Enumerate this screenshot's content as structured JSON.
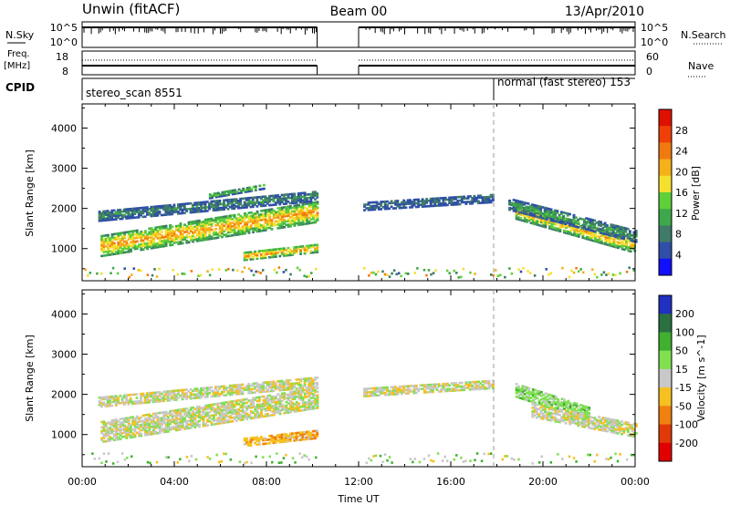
{
  "header": {
    "title": "Unwin (fitACF)",
    "beam": "Beam 00",
    "date": "13/Apr/2010"
  },
  "strips": {
    "nsky_label": "N.Sky",
    "nsky_ticks": [
      "10^5",
      "10^0"
    ],
    "nsearch_label": "N.Search",
    "nsearch_ticks": [
      "10^5",
      "10^0"
    ],
    "freq_label_line1": "Freq.",
    "freq_label_line2": "[MHz]",
    "freq_ticks": [
      "18",
      "8"
    ],
    "nave_label": "Nave",
    "nave_ticks": [
      "60",
      "0"
    ],
    "cpid_label": "CPID",
    "cpid_left": "stereo_scan 8551",
    "cpid_right": "normal (fast stereo) 153"
  },
  "chart_data": [
    {
      "type": "heatmap",
      "name_shown": "Power [dB]",
      "ylabel": "Slant Range [km]",
      "yticks": [
        1000,
        2000,
        3000,
        4000
      ],
      "ylim": [
        200,
        4600
      ],
      "xlim": [
        0,
        24
      ],
      "colorbar_ticks": [
        4,
        8,
        12,
        16,
        20,
        24,
        28
      ],
      "colorbar_colors": [
        "#1010ff",
        "#2f4fa8",
        "#3f7a6a",
        "#3fa84a",
        "#5fd03a",
        "#f5e030",
        "#f5b01a",
        "#f07a10",
        "#f04008",
        "#e01000"
      ],
      "echo_bands": [
        {
          "t0": 0.8,
          "t1": 10.2,
          "r0_start": 1050,
          "r0_end": 1900,
          "width": 500,
          "level": 22
        },
        {
          "t0": 0.7,
          "t1": 10.2,
          "r0_start": 1800,
          "r0_end": 2300,
          "width": 250,
          "level": 8
        },
        {
          "t0": 5.5,
          "t1": 8.0,
          "r0_start": 2300,
          "r0_end": 2550,
          "width": 120,
          "level": 14
        },
        {
          "t0": 7.0,
          "t1": 10.2,
          "r0_start": 800,
          "r0_end": 1000,
          "width": 200,
          "level": 22
        },
        {
          "t0": 12.2,
          "t1": 17.8,
          "r0_start": 2050,
          "r0_end": 2250,
          "width": 220,
          "level": 6
        },
        {
          "t0": 18.8,
          "t1": 24.0,
          "r0_start": 1900,
          "r0_end": 1050,
          "width": 350,
          "level": 20
        },
        {
          "t0": 18.5,
          "t1": 24.0,
          "r0_start": 2100,
          "r0_end": 1300,
          "width": 300,
          "level": 10
        }
      ]
    },
    {
      "type": "heatmap",
      "name_shown": "Velocity [m s^-1]",
      "ylabel": "Slant Range [km]",
      "yticks": [
        1000,
        2000,
        3000,
        4000
      ],
      "ylim": [
        200,
        4600
      ],
      "xlim": [
        0,
        24
      ],
      "colorbar_ticks": [
        200,
        100,
        50,
        15,
        -15,
        -50,
        -100,
        -200
      ],
      "colorbar_colors": [
        "#2030c0",
        "#2a7040",
        "#3fb030",
        "#7fe050",
        "#c8c8c8",
        "#f5c020",
        "#f08010",
        "#e03a08",
        "#e00000"
      ],
      "echo_bands": [
        {
          "t0": 0.8,
          "t1": 10.2,
          "r0_start": 1050,
          "r0_end": 1900,
          "width": 500,
          "vel": 0
        },
        {
          "t0": 0.7,
          "t1": 10.2,
          "r0_start": 1800,
          "r0_end": 2300,
          "width": 250,
          "vel": 0
        },
        {
          "t0": 7.0,
          "t1": 10.2,
          "r0_start": 800,
          "r0_end": 1000,
          "width": 200,
          "vel": -40
        },
        {
          "t0": 12.2,
          "t1": 17.8,
          "r0_start": 2050,
          "r0_end": 2250,
          "width": 220,
          "vel": 0
        },
        {
          "t0": 18.8,
          "t1": 22.0,
          "r0_start": 2100,
          "r0_end": 1500,
          "width": 350,
          "vel": 30
        },
        {
          "t0": 19.5,
          "t1": 24.0,
          "r0_start": 1600,
          "r0_end": 1100,
          "width": 350,
          "vel": 0
        }
      ]
    }
  ],
  "xaxis": {
    "ticks": [
      "00:00",
      "04:00",
      "08:00",
      "12:00",
      "16:00",
      "20:00",
      "00:00"
    ],
    "label": "Time UT"
  }
}
